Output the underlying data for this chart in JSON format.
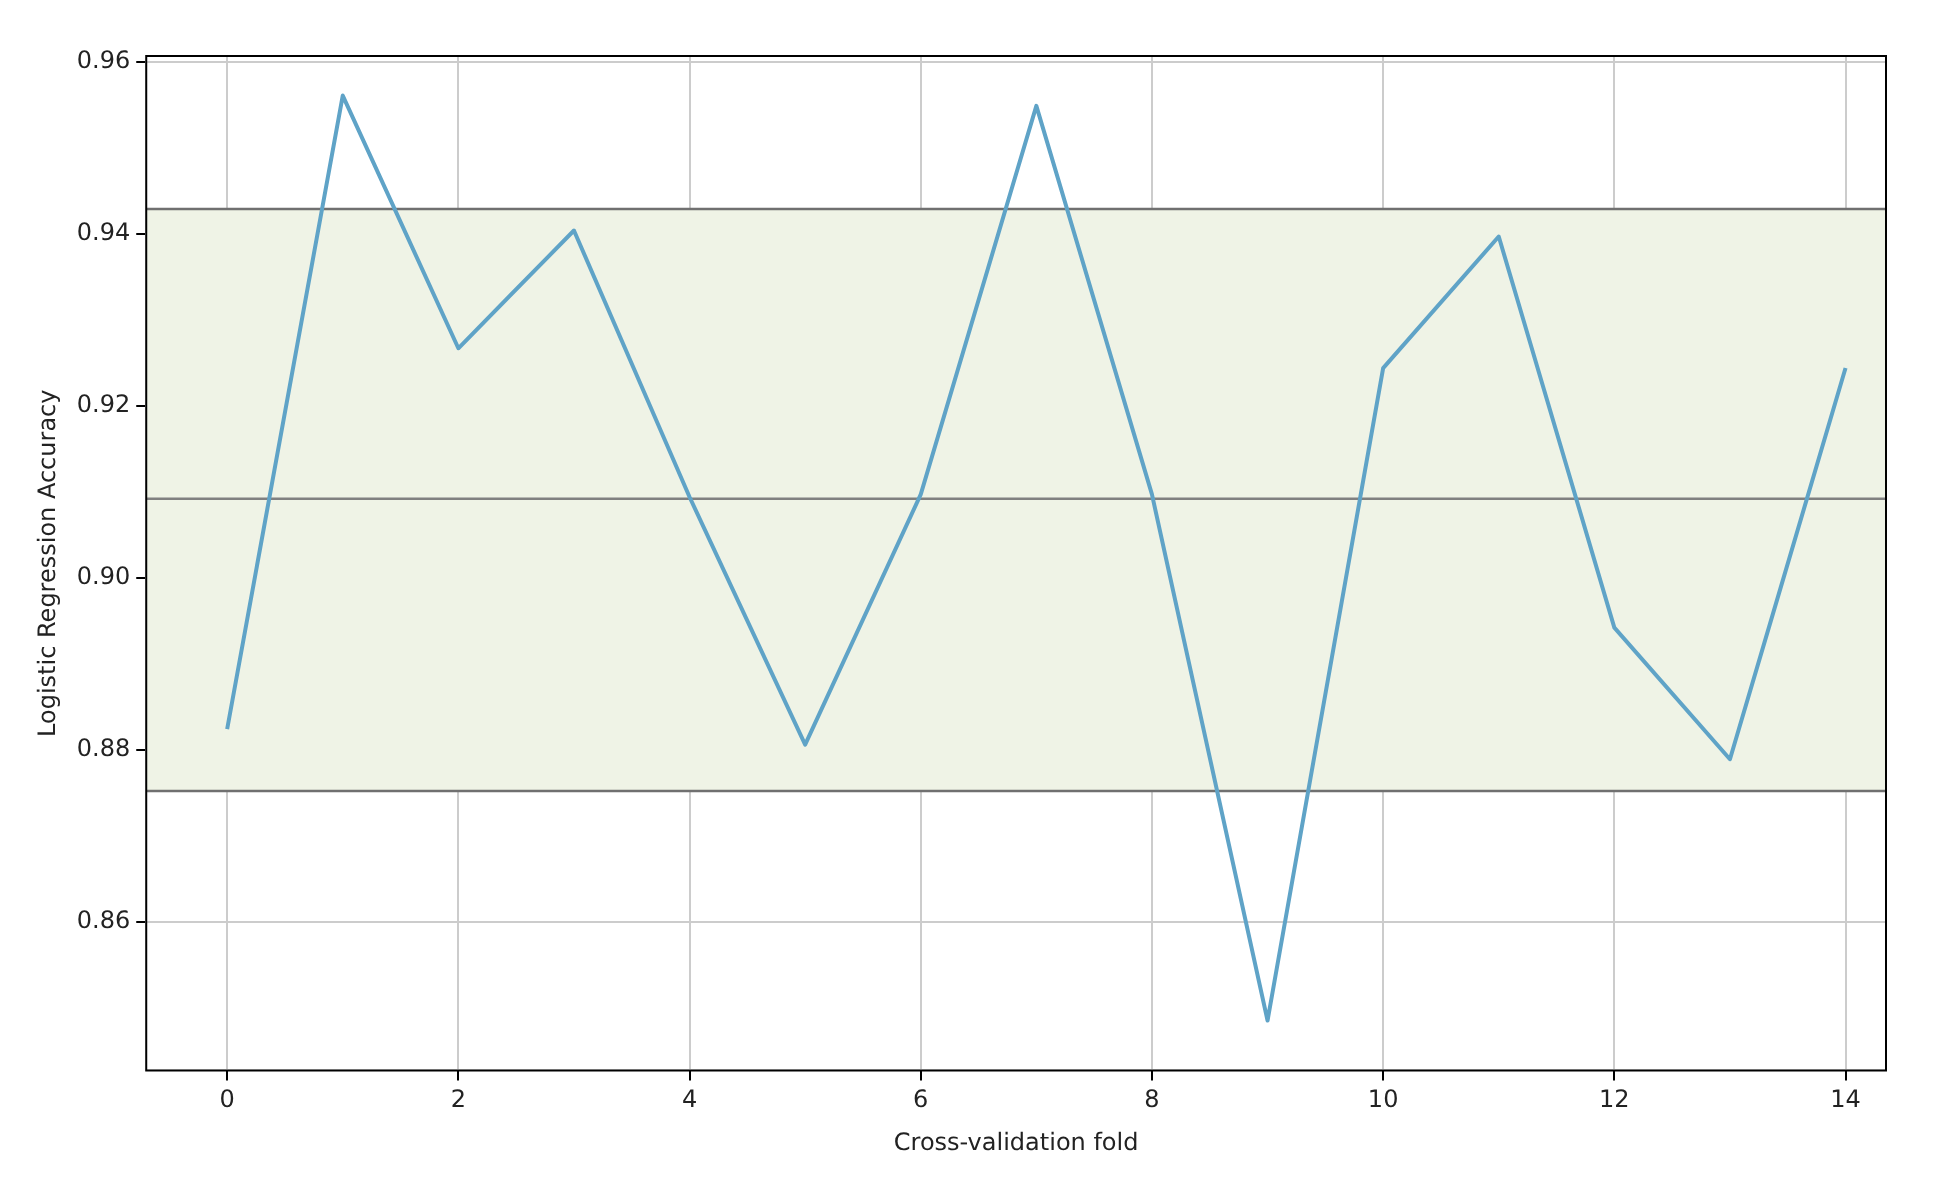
{
  "chart_data": {
    "type": "line",
    "xlabel": "Cross-validation fold",
    "ylabel": "Logistic Regression Accuracy",
    "x": [
      0,
      1,
      2,
      3,
      4,
      5,
      6,
      7,
      8,
      9,
      10,
      11,
      12,
      13,
      14
    ],
    "series": [
      {
        "color": "#5fa3c7",
        "values": [
          0.8824,
          0.9561,
          0.9267,
          0.9404,
          0.9094,
          0.8806,
          0.9097,
          0.9549,
          0.9097,
          0.8485,
          0.9244,
          0.9397,
          0.8942,
          0.8789,
          0.9244
        ]
      }
    ],
    "xlim": [
      -0.7,
      14.35
    ],
    "xticks": [
      0,
      2,
      4,
      6,
      8,
      10,
      12,
      14
    ],
    "ylim": [
      0.8427,
      0.9607
    ],
    "yticks": [
      {
        "value": 0.86,
        "label": "0.86"
      },
      {
        "value": 0.88,
        "label": "0.88"
      },
      {
        "value": 0.9,
        "label": "0.90"
      },
      {
        "value": 0.92,
        "label": "0.92"
      },
      {
        "value": 0.94,
        "label": "0.94"
      },
      {
        "value": 0.96,
        "label": "0.96"
      }
    ],
    "ref_lines": [
      {
        "axis": "y",
        "value": 0.9092,
        "color": "#808080"
      },
      {
        "axis": "y",
        "value": 0.9429,
        "color": "#707070"
      },
      {
        "axis": "y",
        "value": 0.8752,
        "color": "#707070"
      }
    ],
    "bands": [
      {
        "axis": "y",
        "from": 0.8752,
        "to": 0.9429,
        "color": "#eff3e6"
      }
    ],
    "grid": true
  }
}
